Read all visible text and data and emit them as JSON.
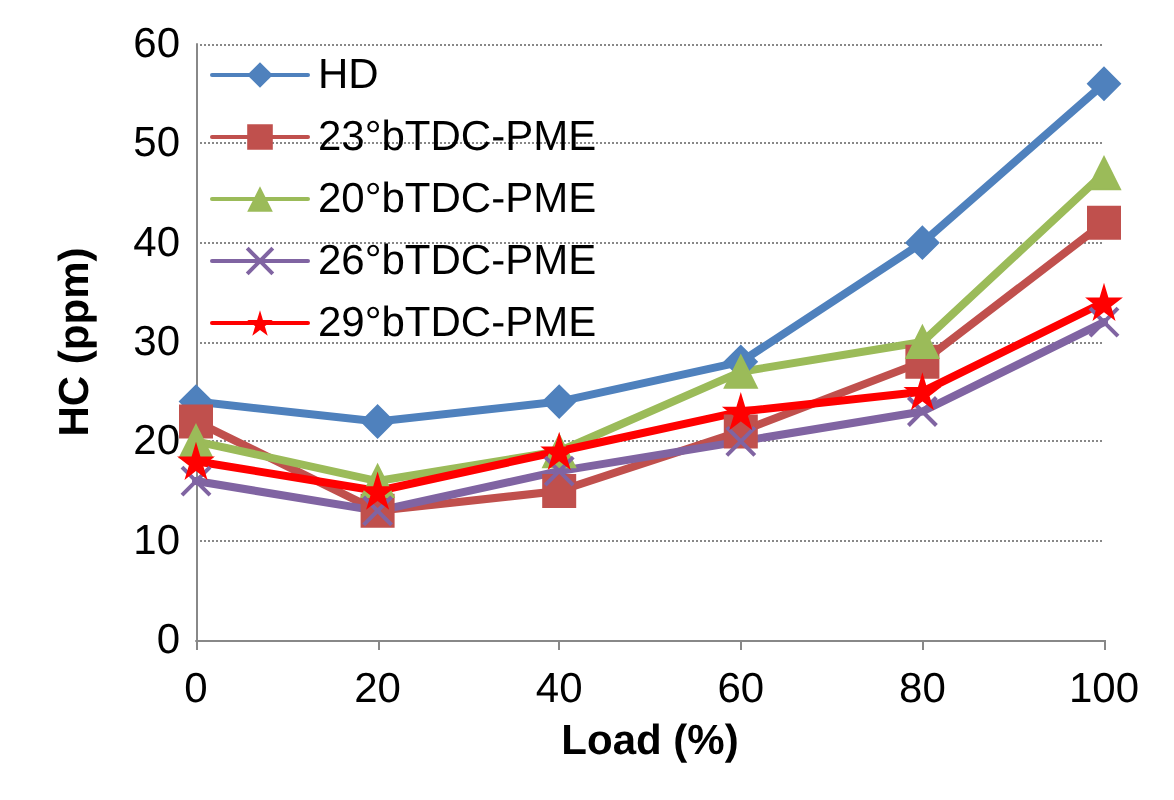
{
  "chart_data": {
    "type": "line",
    "xlabel": "Load (%)",
    "ylabel": "HC (ppm)",
    "x": [
      0,
      20,
      40,
      60,
      80,
      100
    ],
    "xlim": [
      0,
      100
    ],
    "xticks": [
      0,
      20,
      40,
      60,
      80,
      100
    ],
    "ylim": [
      0,
      60
    ],
    "yticks": [
      0,
      10,
      20,
      30,
      40,
      50,
      60
    ],
    "grid": "y",
    "legend": "top left",
    "series": [
      {
        "name": "HD",
        "color": "#4f81bd",
        "marker": "diamond",
        "values": [
          24,
          22,
          24,
          28,
          40,
          56
        ]
      },
      {
        "name": "23°bTDC-PME",
        "color": "#c0504d",
        "marker": "square",
        "values": [
          22,
          13,
          15,
          21,
          28,
          42
        ]
      },
      {
        "name": "20°bTDC-PME",
        "color": "#9bbb59",
        "marker": "triangle",
        "values": [
          20,
          16,
          19,
          27,
          30,
          47
        ]
      },
      {
        "name": "26°bTDC-PME",
        "color": "#8064a2",
        "marker": "cross",
        "values": [
          16,
          13,
          17,
          20,
          23,
          32
        ]
      },
      {
        "name": "29°bTDC-PME",
        "color": "#ff0000",
        "marker": "star",
        "values": [
          18,
          15,
          19,
          23,
          25,
          34
        ]
      }
    ]
  }
}
